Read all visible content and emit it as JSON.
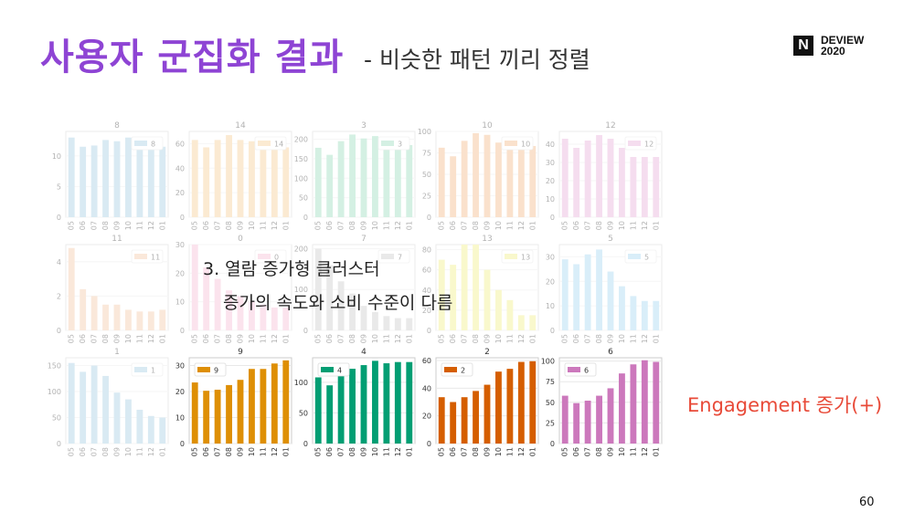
{
  "slide": {
    "title": "사용자 군집화 결과",
    "subtitle": "- 비슷한 패턴 끼리 정렬",
    "logo_mark": "N",
    "logo_line1": "DEVIEW",
    "logo_line2": "2020",
    "overlay_line1": "3. 열람 증가형 클러스터",
    "overlay_line2": "증가의 속도와 소비 수준이 다름",
    "engagement_label": "Engagement 증가(+)",
    "page_number": "60"
  },
  "chart_data": [
    {
      "type": "bar",
      "title": "8",
      "legend": "8",
      "color": "#9ecae1",
      "faded": true,
      "categories": [
        "05",
        "06",
        "07",
        "08",
        "09",
        "10",
        "11",
        "12",
        "01"
      ],
      "values": [
        13,
        11.5,
        11.7,
        12.6,
        12.4,
        13,
        11.7,
        11.7,
        11.5
      ],
      "ylim": [
        0,
        14
      ],
      "yticks": [
        0,
        5,
        10
      ]
    },
    {
      "type": "bar",
      "title": "14",
      "legend": "14",
      "color": "#f5c98a",
      "faded": true,
      "categories": [
        "05",
        "06",
        "07",
        "08",
        "09",
        "10",
        "11",
        "12",
        "01"
      ],
      "values": [
        63,
        57,
        63,
        67,
        63,
        62,
        58,
        57,
        57
      ],
      "ylim": [
        0,
        70
      ],
      "yticks": [
        0,
        20,
        40,
        60
      ]
    },
    {
      "type": "bar",
      "title": "3",
      "legend": "3",
      "color": "#8fd9b6",
      "faded": true,
      "categories": [
        "05",
        "06",
        "07",
        "08",
        "09",
        "10",
        "11",
        "12",
        "01"
      ],
      "values": [
        178,
        160,
        195,
        212,
        202,
        208,
        188,
        185,
        185
      ],
      "ylim": [
        0,
        220
      ],
      "yticks": [
        0,
        50,
        100,
        150,
        200
      ]
    },
    {
      "type": "bar",
      "title": "10",
      "legend": "10",
      "color": "#f2b27c",
      "faded": true,
      "categories": [
        "05",
        "06",
        "07",
        "08",
        "09",
        "10",
        "11",
        "12",
        "01"
      ],
      "values": [
        81,
        71,
        89,
        98,
        96,
        87,
        81,
        83,
        83
      ],
      "ylim": [
        0,
        100
      ],
      "yticks": [
        0,
        25,
        50,
        75,
        100
      ]
    },
    {
      "type": "bar",
      "title": "12",
      "legend": "12",
      "color": "#e6a8d7",
      "faded": true,
      "categories": [
        "05",
        "06",
        "07",
        "08",
        "09",
        "10",
        "11",
        "12",
        "01"
      ],
      "values": [
        43,
        38,
        42,
        45,
        43,
        38,
        33,
        33,
        33
      ],
      "ylim": [
        0,
        47
      ],
      "yticks": [
        0,
        10,
        20,
        30,
        40
      ]
    },
    {
      "type": "bar",
      "title": "11",
      "legend": "11",
      "color": "#f2c4a0",
      "faded": true,
      "categories": [
        "05",
        "06",
        "07",
        "08",
        "09",
        "10",
        "11",
        "12",
        "01"
      ],
      "values": [
        4.8,
        2.4,
        2,
        1.5,
        1.5,
        1.2,
        1.1,
        1.1,
        1.2
      ],
      "ylim": [
        0,
        5
      ],
      "yticks": [
        0,
        2,
        4
      ]
    },
    {
      "type": "bar",
      "title": "0",
      "legend": "0",
      "color": "#f7b6d2",
      "faded": true,
      "categories": [
        "05",
        "06",
        "07",
        "08",
        "09",
        "10",
        "11",
        "12",
        "01"
      ],
      "values": [
        30,
        22,
        18,
        14,
        12,
        10,
        9,
        8,
        8
      ],
      "ylim": [
        0,
        30
      ],
      "yticks": [
        0,
        10,
        20,
        30
      ]
    },
    {
      "type": "bar",
      "title": "7",
      "legend": "7",
      "color": "#c7c7c7",
      "faded": true,
      "categories": [
        "05",
        "06",
        "07",
        "08",
        "09",
        "10",
        "11",
        "12",
        "01"
      ],
      "values": [
        200,
        160,
        120,
        90,
        60,
        45,
        35,
        30,
        30
      ],
      "ylim": [
        0,
        210
      ],
      "yticks": [
        0,
        100,
        200
      ]
    },
    {
      "type": "bar",
      "title": "13",
      "legend": "13",
      "color": "#f0ee7a",
      "faded": true,
      "categories": [
        "05",
        "06",
        "07",
        "08",
        "09",
        "10",
        "11",
        "12",
        "01"
      ],
      "values": [
        70,
        65,
        85,
        85,
        60,
        40,
        30,
        15,
        15
      ],
      "ylim": [
        0,
        85
      ],
      "yticks": [
        0,
        20,
        40,
        60,
        80
      ]
    },
    {
      "type": "bar",
      "title": "5",
      "legend": "5",
      "color": "#9dd3f0",
      "faded": true,
      "categories": [
        "05",
        "06",
        "07",
        "08",
        "09",
        "10",
        "11",
        "12",
        "01"
      ],
      "values": [
        29,
        27,
        31,
        33,
        24,
        18,
        14,
        12,
        12
      ],
      "ylim": [
        0,
        35
      ],
      "yticks": [
        0,
        10,
        20,
        30
      ]
    },
    {
      "type": "bar",
      "title": "1",
      "legend": "1",
      "color": "#9ecae1",
      "faded": true,
      "categories": [
        "05",
        "06",
        "07",
        "08",
        "09",
        "10",
        "11",
        "12",
        "01"
      ],
      "values": [
        155,
        138,
        150,
        130,
        98,
        85,
        65,
        53,
        50
      ],
      "ylim": [
        0,
        165
      ],
      "yticks": [
        0,
        50,
        100,
        150
      ]
    },
    {
      "type": "bar",
      "title": "9",
      "legend": "9",
      "color": "#de8f05",
      "faded": false,
      "categories": [
        "05",
        "06",
        "07",
        "08",
        "09",
        "10",
        "11",
        "12",
        "01"
      ],
      "values": [
        23.5,
        20.3,
        20.7,
        22.5,
        24.5,
        28.7,
        28.7,
        30.8,
        32
      ],
      "ylim": [
        0,
        33
      ],
      "yticks": [
        0,
        10,
        20,
        30
      ]
    },
    {
      "type": "bar",
      "title": "4",
      "legend": "4",
      "color": "#029e73",
      "faded": false,
      "categories": [
        "05",
        "06",
        "07",
        "08",
        "09",
        "10",
        "11",
        "12",
        "01"
      ],
      "values": [
        108,
        95,
        112,
        122,
        128,
        135,
        131,
        133,
        133
      ],
      "ylim": [
        0,
        140
      ],
      "yticks": [
        0,
        50,
        100
      ]
    },
    {
      "type": "bar",
      "title": "2",
      "legend": "2",
      "color": "#d55e00",
      "faded": false,
      "categories": [
        "05",
        "06",
        "07",
        "08",
        "09",
        "10",
        "11",
        "12",
        "01"
      ],
      "values": [
        33.5,
        30,
        33.5,
        38,
        42.5,
        52,
        54,
        59,
        59.5
      ],
      "ylim": [
        0,
        62
      ],
      "yticks": [
        0,
        20,
        40,
        60
      ]
    },
    {
      "type": "bar",
      "title": "6",
      "legend": "6",
      "color": "#cc78bc",
      "faded": false,
      "categories": [
        "05",
        "06",
        "07",
        "08",
        "09",
        "10",
        "11",
        "12",
        "01"
      ],
      "values": [
        58,
        49,
        52,
        58,
        67,
        85,
        96,
        101,
        99
      ],
      "ylim": [
        0,
        104
      ],
      "yticks": [
        0,
        25,
        50,
        75,
        100
      ]
    }
  ]
}
